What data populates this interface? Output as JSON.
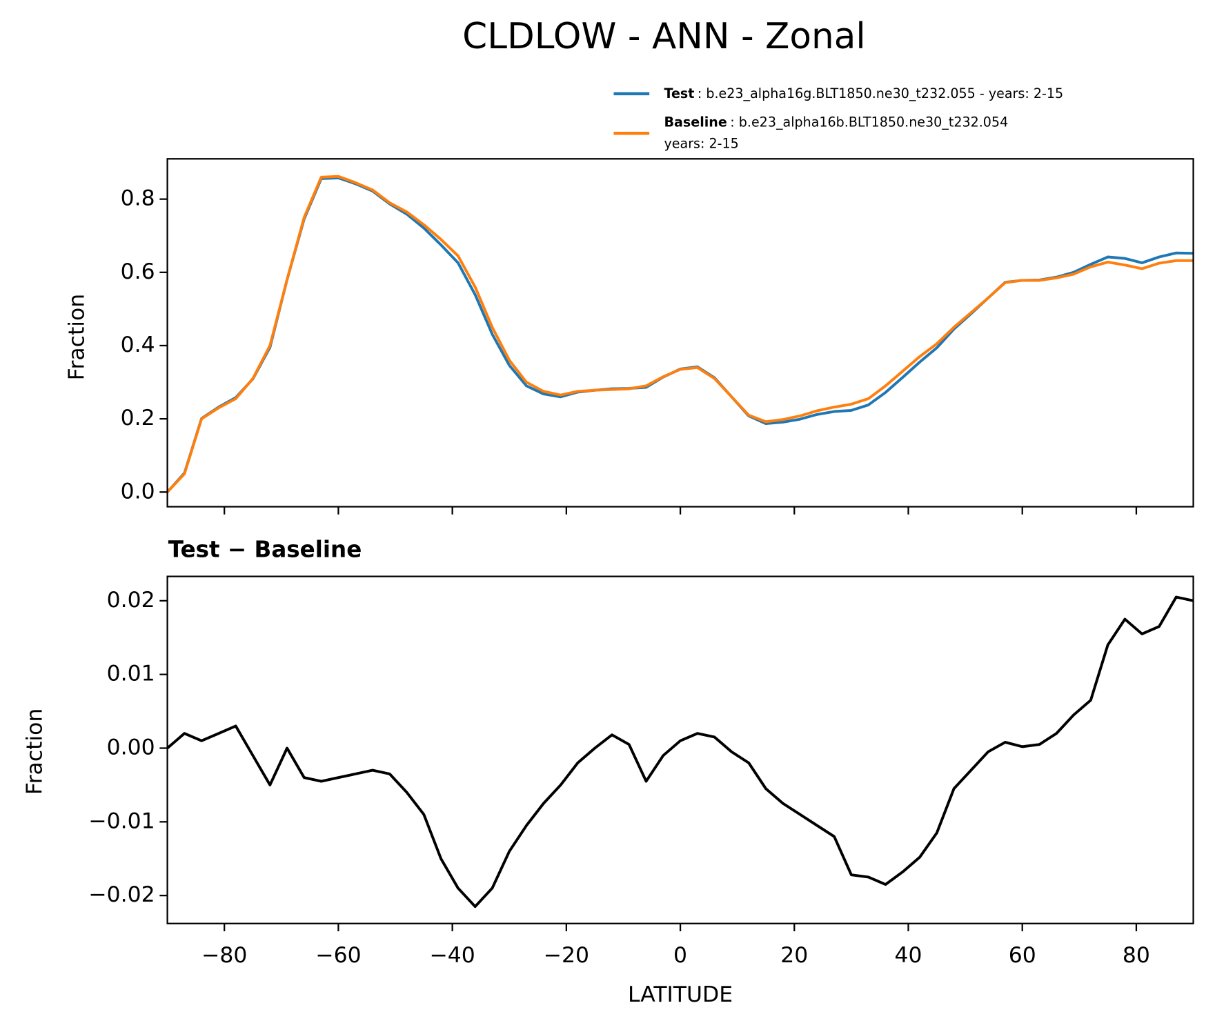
{
  "chart_data": [
    {
      "type": "line",
      "title": "CLDLOW - ANN - Zonal",
      "ylabel": "Fraction",
      "x": [
        -90,
        -87,
        -84,
        -81,
        -78,
        -75,
        -72,
        -69,
        -66,
        -63,
        -60,
        -57,
        -54,
        -51,
        -48,
        -45,
        -42,
        -39,
        -36,
        -33,
        -30,
        -27,
        -24,
        -21,
        -18,
        -15,
        -12,
        -9,
        -6,
        -3,
        0,
        3,
        6,
        9,
        12,
        15,
        18,
        21,
        24,
        27,
        30,
        33,
        36,
        39,
        42,
        45,
        48,
        51,
        54,
        57,
        60,
        63,
        66,
        69,
        72,
        75,
        78,
        81,
        84,
        87,
        90
      ],
      "series": [
        {
          "name": "Test",
          "label_lines": [
            ": b.e23_alpha16g.BLT1850.ne30_t232.055 - years: 2-15"
          ],
          "color": "#1f77b4",
          "values": [
            0.0,
            0.052,
            0.201,
            0.232,
            0.258,
            0.309,
            0.395,
            0.58,
            0.746,
            0.856,
            0.858,
            0.842,
            0.822,
            0.787,
            0.759,
            0.721,
            0.675,
            0.626,
            0.539,
            0.431,
            0.346,
            0.29,
            0.268,
            0.26,
            0.273,
            0.278,
            0.282,
            0.283,
            0.286,
            0.314,
            0.336,
            0.342,
            0.312,
            0.26,
            0.208,
            0.187,
            0.191,
            0.199,
            0.212,
            0.22,
            0.223,
            0.238,
            0.272,
            0.313,
            0.355,
            0.394,
            0.445,
            0.487,
            0.53,
            0.573,
            0.578,
            0.579,
            0.587,
            0.6,
            0.622,
            0.642,
            0.638,
            0.626,
            0.642,
            0.653,
            0.652
          ]
        },
        {
          "name": "Baseline",
          "label_lines": [
            ": b.e23_alpha16b.BLT1850.ne30_t232.054",
            "years: 2-15"
          ],
          "color": "#ff7f0e",
          "values": [
            0.0,
            0.05,
            0.2,
            0.23,
            0.255,
            0.31,
            0.4,
            0.58,
            0.75,
            0.86,
            0.862,
            0.845,
            0.825,
            0.79,
            0.765,
            0.73,
            0.69,
            0.645,
            0.56,
            0.45,
            0.36,
            0.3,
            0.275,
            0.265,
            0.275,
            0.278,
            0.28,
            0.282,
            0.29,
            0.315,
            0.335,
            0.34,
            0.31,
            0.26,
            0.21,
            0.192,
            0.198,
            0.208,
            0.222,
            0.232,
            0.24,
            0.255,
            0.29,
            0.33,
            0.37,
            0.405,
            0.45,
            0.49,
            0.53,
            0.572,
            0.578,
            0.578,
            0.585,
            0.595,
            0.615,
            0.628,
            0.62,
            0.61,
            0.625,
            0.632,
            0.632
          ]
        }
      ],
      "xlim": [
        -90,
        90
      ],
      "xticks": [
        -80,
        -60,
        -40,
        -20,
        0,
        20,
        40,
        60,
        80
      ],
      "ylim": [
        -0.04,
        0.91
      ],
      "yticks": [
        {
          "value": 0,
          "label": "0.0"
        },
        0.2,
        0.4,
        0.6,
        0.8
      ]
    },
    {
      "type": "line",
      "title": "Test − Baseline",
      "ylabel": "Fraction",
      "xlabel": "LATITUDE",
      "x": [
        -90,
        -87,
        -84,
        -81,
        -78,
        -75,
        -72,
        -69,
        -66,
        -63,
        -60,
        -57,
        -54,
        -51,
        -48,
        -45,
        -42,
        -39,
        -36,
        -33,
        -30,
        -27,
        -24,
        -21,
        -18,
        -15,
        -12,
        -9,
        -6,
        -3,
        0,
        3,
        6,
        9,
        12,
        15,
        18,
        21,
        24,
        27,
        30,
        33,
        36,
        39,
        42,
        45,
        48,
        51,
        54,
        57,
        60,
        63,
        66,
        69,
        72,
        75,
        78,
        81,
        84,
        87,
        90
      ],
      "series": [
        {
          "color": "#000000",
          "values": [
            0.0,
            0.002,
            0.001,
            0.002,
            0.003,
            -0.001,
            -0.005,
            0.0,
            -0.004,
            -0.0045,
            -0.004,
            -0.0035,
            -0.003,
            -0.0035,
            -0.006,
            -0.009,
            -0.015,
            -0.019,
            -0.0215,
            -0.019,
            -0.014,
            -0.0105,
            -0.0075,
            -0.005,
            -0.002,
            0.0,
            0.0018,
            0.0005,
            -0.0045,
            -0.001,
            0.001,
            0.002,
            0.0015,
            -0.0005,
            -0.002,
            -0.0055,
            -0.0075,
            -0.009,
            -0.0105,
            -0.012,
            -0.0172,
            -0.0175,
            -0.0185,
            -0.0168,
            -0.0148,
            -0.0115,
            -0.0055,
            -0.003,
            -0.0005,
            0.0008,
            0.0002,
            0.0005,
            0.002,
            0.0045,
            0.0065,
            0.014,
            0.0175,
            0.0155,
            0.0165,
            0.0205,
            0.02
          ]
        }
      ],
      "xlim": [
        -90,
        90
      ],
      "xticks": [
        {
          "value": -80,
          "label": "−80"
        },
        {
          "value": -60,
          "label": "−60"
        },
        {
          "value": -40,
          "label": "−40"
        },
        {
          "value": -20,
          "label": "−20"
        },
        0,
        20,
        40,
        60,
        80
      ],
      "ylim": [
        -0.0238,
        0.0233
      ],
      "yticks": [
        {
          "value": -0.02,
          "label": "−0.02"
        },
        {
          "value": -0.01,
          "label": "−0.01"
        },
        {
          "value": 0,
          "label": "0.00"
        },
        0.01,
        0.02
      ]
    }
  ]
}
